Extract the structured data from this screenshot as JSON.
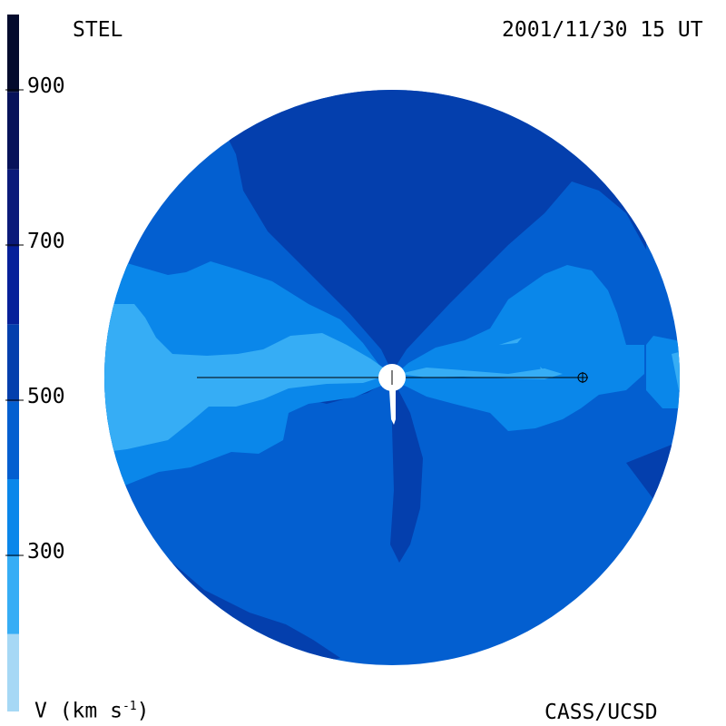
{
  "header": {
    "observatory": "STEL",
    "timestamp": "2001/11/30 15 UT"
  },
  "footer": {
    "unit_label": "V (km s",
    "unit_exponent": "-1",
    "unit_close": ")",
    "credit": "CASS/UCSD"
  },
  "colorbar": {
    "ticks": [
      "900",
      "700",
      "500",
      "300"
    ],
    "bands": [
      {
        "min": 100,
        "max": 200,
        "color": "#a6d8f5"
      },
      {
        "min": 200,
        "max": 300,
        "color": "#36adf5"
      },
      {
        "min": 300,
        "max": 400,
        "color": "#0a87ea"
      },
      {
        "min": 400,
        "max": 500,
        "color": "#035fd0"
      },
      {
        "min": 500,
        "max": 600,
        "color": "#043fad"
      },
      {
        "min": 600,
        "max": 700,
        "color": "#06209a"
      },
      {
        "min": 700,
        "max": 800,
        "color": "#0b1a7a"
      },
      {
        "min": 800,
        "max": 900,
        "color": "#07125a"
      },
      {
        "min": 900,
        "max": 1000,
        "color": "#040b2d"
      }
    ]
  },
  "colors": {
    "v_lt_300": "#36adf5",
    "v_300_400": "#0a87ea",
    "v_400_500": "#035fd0",
    "v_500_600": "#043fad"
  },
  "markers": {
    "sun_icon": "white disc",
    "earth_icon": "circle-plus"
  }
}
